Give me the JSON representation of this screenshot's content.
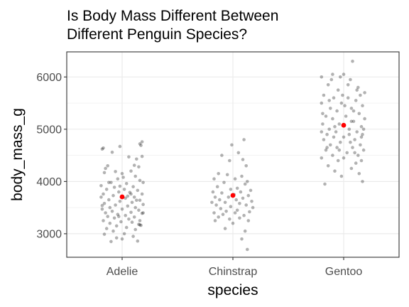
{
  "chart_data": {
    "type": "scatter",
    "title_lines": [
      "Is Body Mass Different Between",
      "Different Penguin Species?"
    ],
    "xlabel": "species",
    "ylabel": "body_mass_g",
    "categories": [
      "Adelie",
      "Chinstrap",
      "Gentoo"
    ],
    "yticks": [
      3000,
      4000,
      5000,
      6000
    ],
    "ylim": [
      2550,
      6480
    ],
    "grid": true,
    "point_color": "#000000",
    "point_opacity": 0.3,
    "mean_color": "#ff0000",
    "means": [
      {
        "species": "Adelie",
        "body_mass_g": 3706
      },
      {
        "species": "Chinstrap",
        "body_mass_g": 3733
      },
      {
        "species": "Gentoo",
        "body_mass_g": 5076
      }
    ],
    "series": [
      {
        "species": "Adelie",
        "points": [
          [
            -0.18,
            4620
          ],
          [
            -0.17,
            4640
          ],
          [
            -0.02,
            4670
          ],
          [
            0.16,
            4720
          ],
          [
            0.18,
            4760
          ],
          [
            0.17,
            4690
          ],
          [
            -0.09,
            4560
          ],
          [
            0.06,
            4470
          ],
          [
            0.13,
            4430
          ],
          [
            0.18,
            4480
          ],
          [
            -0.13,
            4300
          ],
          [
            0.11,
            4310
          ],
          [
            0.15,
            4280
          ],
          [
            -0.06,
            4190
          ],
          [
            0.0,
            4150
          ],
          [
            0.08,
            4200
          ],
          [
            -0.16,
            4170
          ],
          [
            0.12,
            4100
          ],
          [
            -0.04,
            4050
          ],
          [
            0.16,
            4020
          ],
          [
            -0.1,
            3980
          ],
          [
            0.04,
            3960
          ],
          [
            0.19,
            3980
          ],
          [
            -0.19,
            3920
          ],
          [
            -0.07,
            3890
          ],
          [
            0.1,
            3900
          ],
          [
            0.02,
            3850
          ],
          [
            -0.14,
            3850
          ],
          [
            0.14,
            3830
          ],
          [
            -0.03,
            3800
          ],
          [
            0.07,
            3790
          ],
          [
            -0.17,
            3760
          ],
          [
            0.18,
            3760
          ],
          [
            -0.08,
            3730
          ],
          [
            0.11,
            3700
          ],
          [
            -0.19,
            3700
          ],
          [
            0.03,
            3680
          ],
          [
            -0.12,
            3650
          ],
          [
            0.16,
            3640
          ],
          [
            -0.02,
            3620
          ],
          [
            0.09,
            3600
          ],
          [
            -0.16,
            3580
          ],
          [
            0.19,
            3560
          ],
          [
            -0.06,
            3550
          ],
          [
            0.05,
            3530
          ],
          [
            -0.11,
            3500
          ],
          [
            0.12,
            3500
          ],
          [
            -0.18,
            3470
          ],
          [
            0.0,
            3470
          ],
          [
            0.15,
            3450
          ],
          [
            -0.09,
            3430
          ],
          [
            0.08,
            3410
          ],
          [
            -0.15,
            3400
          ],
          [
            0.18,
            3390
          ],
          [
            -0.04,
            3370
          ],
          [
            0.03,
            3350
          ],
          [
            -0.13,
            3330
          ],
          [
            0.11,
            3320
          ],
          [
            -0.07,
            3300
          ],
          [
            0.06,
            3280
          ],
          [
            -0.17,
            3250
          ],
          [
            0.16,
            3250
          ],
          [
            -0.01,
            3230
          ],
          [
            0.09,
            3220
          ],
          [
            -0.11,
            3200
          ],
          [
            0.15,
            3180
          ],
          [
            0.16,
            3170
          ],
          [
            0.17,
            3160
          ],
          [
            -0.05,
            3150
          ],
          [
            0.04,
            3120
          ],
          [
            -0.14,
            3100
          ],
          [
            0.12,
            3080
          ],
          [
            -0.08,
            3050
          ],
          [
            0.02,
            3000
          ],
          [
            -0.16,
            2990
          ],
          [
            0.1,
            2950
          ],
          [
            -0.05,
            2920
          ],
          [
            0.0,
            2900
          ],
          [
            0.14,
            2860
          ],
          [
            -0.1,
            2850
          ],
          [
            0.05,
            3720
          ],
          [
            -0.02,
            3910
          ],
          [
            0.13,
            3640
          ],
          [
            -0.18,
            3540
          ],
          [
            0.08,
            3760
          ],
          [
            -0.12,
            3980
          ],
          [
            0.01,
            4080
          ],
          [
            -0.15,
            4250
          ],
          [
            0.19,
            3400
          ],
          [
            -0.03,
            3330
          ]
        ]
      },
      {
        "species": "Chinstrap",
        "points": [
          [
            0.1,
            4800
          ],
          [
            -0.01,
            4700
          ],
          [
            0.05,
            4550
          ],
          [
            -0.1,
            4500
          ],
          [
            0.09,
            4420
          ],
          [
            -0.03,
            4400
          ],
          [
            0.12,
            4300
          ],
          [
            -0.13,
            4150
          ],
          [
            -0.05,
            4130
          ],
          [
            0.08,
            4100
          ],
          [
            -0.17,
            4050
          ],
          [
            0.02,
            4050
          ],
          [
            0.13,
            4000
          ],
          [
            -0.08,
            3980
          ],
          [
            0.11,
            3950
          ],
          [
            -0.14,
            3900
          ],
          [
            0.04,
            3870
          ],
          [
            -0.02,
            3850
          ],
          [
            0.16,
            3830
          ],
          [
            -0.18,
            3800
          ],
          [
            0.07,
            3800
          ],
          [
            -0.1,
            3780
          ],
          [
            0.01,
            3750
          ],
          [
            0.14,
            3730
          ],
          [
            -0.16,
            3700
          ],
          [
            -0.04,
            3700
          ],
          [
            0.09,
            3680
          ],
          [
            -0.12,
            3650
          ],
          [
            0.03,
            3650
          ],
          [
            0.17,
            3620
          ],
          [
            -0.19,
            3600
          ],
          [
            -0.07,
            3600
          ],
          [
            0.06,
            3580
          ],
          [
            -0.15,
            3550
          ],
          [
            0.12,
            3550
          ],
          [
            -0.02,
            3520
          ],
          [
            0.18,
            3500
          ],
          [
            -0.11,
            3480
          ],
          [
            0.04,
            3450
          ],
          [
            -0.06,
            3430
          ],
          [
            0.15,
            3420
          ],
          [
            -0.17,
            3400
          ],
          [
            0.02,
            3400
          ],
          [
            -0.09,
            3370
          ],
          [
            0.1,
            3350
          ],
          [
            -0.13,
            3320
          ],
          [
            0.06,
            3300
          ],
          [
            -0.03,
            3280
          ],
          [
            0.14,
            3250
          ],
          [
            -0.16,
            3250
          ],
          [
            0.0,
            3200
          ],
          [
            -0.07,
            3100
          ],
          [
            0.11,
            3050
          ],
          [
            0.08,
            2900
          ],
          [
            0.13,
            2700
          ]
        ]
      },
      {
        "species": "Gentoo",
        "points": [
          [
            0.08,
            6300
          ],
          [
            -0.2,
            6000
          ],
          [
            -0.1,
            6050
          ],
          [
            -0.03,
            6000
          ],
          [
            0.0,
            6050
          ],
          [
            0.06,
            5950
          ],
          [
            -0.14,
            5850
          ],
          [
            0.13,
            5800
          ],
          [
            -0.05,
            5750
          ],
          [
            0.19,
            5700
          ],
          [
            0.15,
            5650
          ],
          [
            -0.18,
            5650
          ],
          [
            -0.09,
            5600
          ],
          [
            0.04,
            5600
          ],
          [
            0.11,
            5550
          ],
          [
            -0.2,
            5500
          ],
          [
            -0.02,
            5500
          ],
          [
            0.17,
            5450
          ],
          [
            -0.12,
            5400
          ],
          [
            0.07,
            5400
          ],
          [
            -0.06,
            5350
          ],
          [
            0.14,
            5300
          ],
          [
            -0.16,
            5250
          ],
          [
            0.02,
            5250
          ],
          [
            -0.1,
            5200
          ],
          [
            0.19,
            5200
          ],
          [
            0.09,
            5150
          ],
          [
            -0.19,
            5100
          ],
          [
            -0.04,
            5100
          ],
          [
            0.16,
            5050
          ],
          [
            -0.13,
            5000
          ],
          [
            0.05,
            5000
          ],
          [
            -0.2,
            4950
          ],
          [
            -0.07,
            4950
          ],
          [
            0.12,
            4950
          ],
          [
            -0.15,
            4900
          ],
          [
            0.17,
            4900
          ],
          [
            0.0,
            4850
          ],
          [
            -0.09,
            4850
          ],
          [
            0.1,
            4800
          ],
          [
            -0.18,
            4800
          ],
          [
            0.06,
            4750
          ],
          [
            -0.03,
            4750
          ],
          [
            0.15,
            4700
          ],
          [
            -0.12,
            4700
          ],
          [
            0.08,
            4650
          ],
          [
            -0.06,
            4650
          ],
          [
            0.18,
            4600
          ],
          [
            -0.16,
            4600
          ],
          [
            0.03,
            4550
          ],
          [
            -0.1,
            4500
          ],
          [
            0.13,
            4500
          ],
          [
            -0.2,
            4450
          ],
          [
            0.0,
            4450
          ],
          [
            0.16,
            4400
          ],
          [
            -0.05,
            4400
          ],
          [
            0.11,
            4350
          ],
          [
            -0.14,
            4300
          ],
          [
            0.07,
            4250
          ],
          [
            -0.08,
            4200
          ],
          [
            0.14,
            4150
          ],
          [
            -0.02,
            4100
          ],
          [
            0.17,
            4000
          ],
          [
            -0.17,
            3950
          ],
          [
            0.04,
            5850
          ],
          [
            -0.11,
            5950
          ],
          [
            0.12,
            5750
          ],
          [
            -0.01,
            5650
          ],
          [
            0.09,
            5350
          ],
          [
            -0.19,
            5300
          ],
          [
            0.18,
            5000
          ],
          [
            -0.08,
            5050
          ],
          [
            0.05,
            4900
          ],
          [
            -0.15,
            4650
          ],
          [
            0.1,
            4550
          ],
          [
            -0.04,
            4600
          ],
          [
            0.16,
            4850
          ],
          [
            0.01,
            5450
          ],
          [
            -0.13,
            5550
          ],
          [
            0.07,
            5150
          ]
        ]
      }
    ]
  }
}
